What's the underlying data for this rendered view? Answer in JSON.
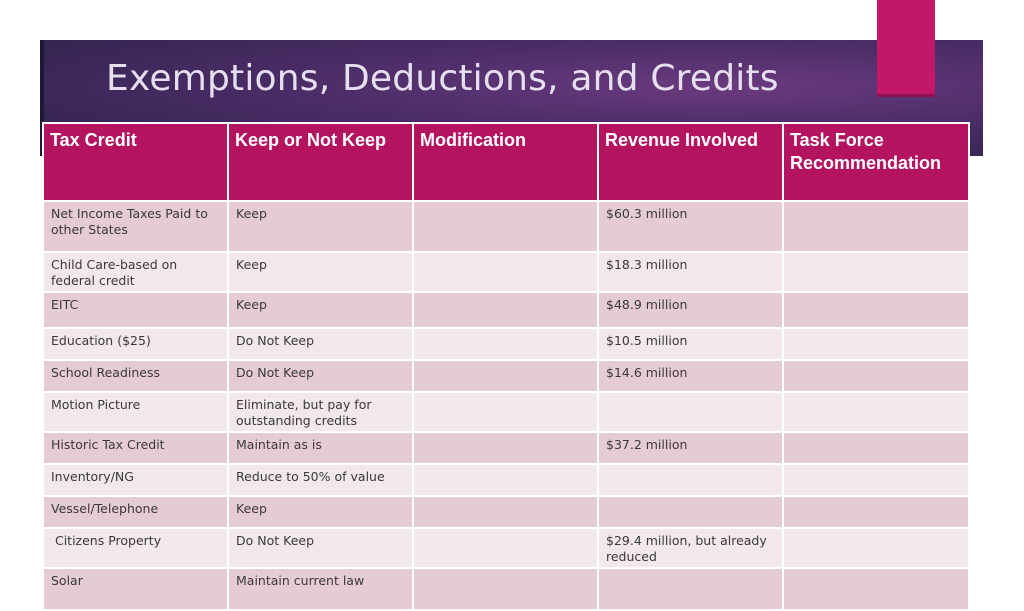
{
  "slide": {
    "title": "Exemptions, Deductions, and Credits"
  },
  "table": {
    "headers": [
      "Tax Credit",
      "Keep or Not Keep",
      "Modification",
      "Revenue Involved",
      "Task Force Recommendation"
    ],
    "rows": [
      {
        "credit": "Net Income Taxes Paid to other States",
        "keep": "Keep",
        "modification": "",
        "revenue": "$60.3 million",
        "recommendation": ""
      },
      {
        "credit": "Child Care-based on federal credit",
        "keep": "Keep",
        "modification": "",
        "revenue": "$18.3 million",
        "recommendation": ""
      },
      {
        "credit": "EITC",
        "keep": "Keep",
        "modification": "",
        "revenue": "$48.9 million",
        "recommendation": ""
      },
      {
        "credit": "Education ($25)",
        "keep": "Do Not Keep",
        "modification": "",
        "revenue": "$10.5 million",
        "recommendation": ""
      },
      {
        "credit": "School Readiness",
        "keep": "Do Not Keep",
        "modification": "",
        "revenue": "$14.6 million",
        "recommendation": ""
      },
      {
        "credit": "Motion Picture",
        "keep": "Eliminate, but pay for outstanding credits",
        "modification": "",
        "revenue": "",
        "recommendation": ""
      },
      {
        "credit": "Historic Tax Credit",
        "keep": "Maintain as is",
        "modification": "",
        "revenue": "$37.2 million",
        "recommendation": ""
      },
      {
        "credit": "Inventory/NG",
        "keep": "Reduce to 50% of value",
        "modification": "",
        "revenue": "",
        "recommendation": ""
      },
      {
        "credit": "Vessel/Telephone",
        "keep": "Keep",
        "modification": "",
        "revenue": "",
        "recommendation": ""
      },
      {
        "credit": " Citizens Property",
        "keep": "Do Not Keep",
        "modification": "",
        "revenue": "$29.4 million, but already reduced",
        "recommendation": ""
      },
      {
        "credit": "Solar",
        "keep": "Maintain current law",
        "modification": "",
        "revenue": "",
        "recommendation": ""
      }
    ]
  },
  "colors": {
    "header_bg": "#b3135f",
    "accent": "#c2186a",
    "row_dark": "#e5ccd3",
    "row_light": "#f2e7ea",
    "link_text": "#2d4fa8"
  }
}
